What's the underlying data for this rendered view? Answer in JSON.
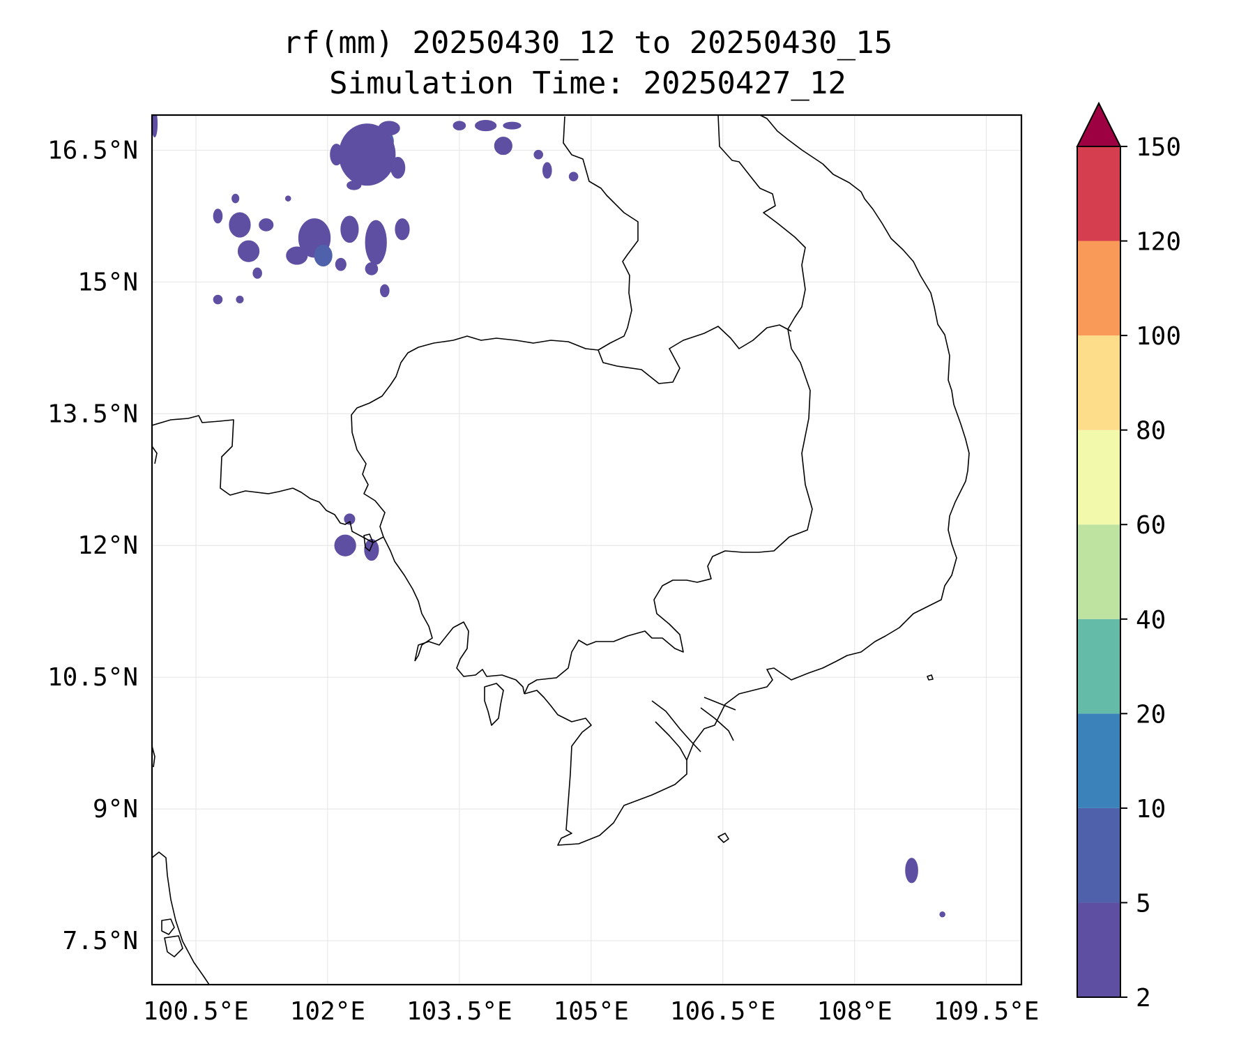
{
  "title": {
    "line1": "rf(mm) 20250430_12 to 20250430_15",
    "line2": "Simulation Time: 20250427_12"
  },
  "map": {
    "lon_range": [
      100.0,
      109.9
    ],
    "lat_range": [
      7.0,
      16.9
    ],
    "x_ticks": [
      {
        "value": 100.5,
        "label": "100.5°E"
      },
      {
        "value": 102.0,
        "label": "102°E"
      },
      {
        "value": 103.5,
        "label": "103.5°E"
      },
      {
        "value": 105.0,
        "label": "105°E"
      },
      {
        "value": 106.5,
        "label": "106.5°E"
      },
      {
        "value": 108.0,
        "label": "108°E"
      },
      {
        "value": 109.5,
        "label": "109.5°E"
      }
    ],
    "y_ticks": [
      {
        "value": 16.5,
        "label": "16.5°N"
      },
      {
        "value": 15.0,
        "label": "15°N"
      },
      {
        "value": 13.5,
        "label": "13.5°N"
      },
      {
        "value": 12.0,
        "label": "12°N"
      },
      {
        "value": 10.5,
        "label": "10.5°N"
      },
      {
        "value": 9.0,
        "label": "9°N"
      },
      {
        "value": 7.5,
        "label": "7.5°N"
      }
    ],
    "grid": true,
    "rain_patches": [
      {
        "lon": 102.5,
        "lat": 16.6,
        "rx": 0.25,
        "ry": 0.18,
        "bin": 2
      },
      {
        "lon": 102.45,
        "lat": 16.45,
        "rx": 0.32,
        "ry": 0.35,
        "bin": 1
      },
      {
        "lon": 102.7,
        "lat": 16.75,
        "rx": 0.12,
        "ry": 0.08,
        "bin": 1
      },
      {
        "lon": 102.1,
        "lat": 16.45,
        "rx": 0.07,
        "ry": 0.12,
        "bin": 1
      },
      {
        "lon": 102.8,
        "lat": 16.3,
        "rx": 0.08,
        "ry": 0.12,
        "bin": 1
      },
      {
        "lon": 102.3,
        "lat": 16.1,
        "rx": 0.08,
        "ry": 0.05,
        "bin": 1
      },
      {
        "lon": 103.8,
        "lat": 16.78,
        "rx": 0.12,
        "ry": 0.06,
        "bin": 1
      },
      {
        "lon": 103.5,
        "lat": 16.78,
        "rx": 0.07,
        "ry": 0.05,
        "bin": 1
      },
      {
        "lon": 104.1,
        "lat": 16.78,
        "rx": 0.1,
        "ry": 0.04,
        "bin": 1
      },
      {
        "lon": 104.0,
        "lat": 16.55,
        "rx": 0.1,
        "ry": 0.1,
        "bin": 1
      },
      {
        "lon": 104.5,
        "lat": 16.27,
        "rx": 0.05,
        "ry": 0.09,
        "bin": 1
      },
      {
        "lon": 104.8,
        "lat": 16.2,
        "rx": 0.05,
        "ry": 0.05,
        "bin": 1
      },
      {
        "lon": 104.4,
        "lat": 16.45,
        "rx": 0.05,
        "ry": 0.05,
        "bin": 1
      },
      {
        "lon": 101.0,
        "lat": 15.65,
        "rx": 0.12,
        "ry": 0.14,
        "bin": 1
      },
      {
        "lon": 100.75,
        "lat": 15.75,
        "rx": 0.05,
        "ry": 0.08,
        "bin": 1
      },
      {
        "lon": 101.1,
        "lat": 15.35,
        "rx": 0.12,
        "ry": 0.12,
        "bin": 1
      },
      {
        "lon": 101.3,
        "lat": 15.65,
        "rx": 0.08,
        "ry": 0.07,
        "bin": 1
      },
      {
        "lon": 101.85,
        "lat": 15.5,
        "rx": 0.18,
        "ry": 0.22,
        "bin": 1
      },
      {
        "lon": 101.65,
        "lat": 15.3,
        "rx": 0.12,
        "ry": 0.1,
        "bin": 1
      },
      {
        "lon": 101.95,
        "lat": 15.3,
        "rx": 0.1,
        "ry": 0.12,
        "bin": 2
      },
      {
        "lon": 102.25,
        "lat": 15.6,
        "rx": 0.1,
        "ry": 0.15,
        "bin": 1
      },
      {
        "lon": 102.55,
        "lat": 15.45,
        "rx": 0.12,
        "ry": 0.25,
        "bin": 1
      },
      {
        "lon": 102.85,
        "lat": 15.6,
        "rx": 0.08,
        "ry": 0.12,
        "bin": 1
      },
      {
        "lon": 102.5,
        "lat": 15.15,
        "rx": 0.07,
        "ry": 0.07,
        "bin": 1
      },
      {
        "lon": 102.15,
        "lat": 15.2,
        "rx": 0.06,
        "ry": 0.07,
        "bin": 1
      },
      {
        "lon": 102.65,
        "lat": 14.9,
        "rx": 0.05,
        "ry": 0.07,
        "bin": 1
      },
      {
        "lon": 101.2,
        "lat": 15.1,
        "rx": 0.05,
        "ry": 0.06,
        "bin": 1
      },
      {
        "lon": 100.75,
        "lat": 14.8,
        "rx": 0.05,
        "ry": 0.05,
        "bin": 1
      },
      {
        "lon": 101.0,
        "lat": 14.8,
        "rx": 0.04,
        "ry": 0.04,
        "bin": 1
      },
      {
        "lon": 101.55,
        "lat": 15.95,
        "rx": 0.03,
        "ry": 0.03,
        "bin": 1
      },
      {
        "lon": 100.95,
        "lat": 15.95,
        "rx": 0.04,
        "ry": 0.05,
        "bin": 1
      },
      {
        "lon": 100.03,
        "lat": 16.8,
        "rx": 0.03,
        "ry": 0.15,
        "bin": 1
      },
      {
        "lon": 102.2,
        "lat": 12.0,
        "rx": 0.12,
        "ry": 0.12,
        "bin": 1
      },
      {
        "lon": 102.5,
        "lat": 11.95,
        "rx": 0.08,
        "ry": 0.12,
        "bin": 1
      },
      {
        "lon": 102.25,
        "lat": 12.3,
        "rx": 0.06,
        "ry": 0.06,
        "bin": 1
      },
      {
        "lon": 108.65,
        "lat": 8.3,
        "rx": 0.07,
        "ry": 0.14,
        "bin": 1
      },
      {
        "lon": 109.0,
        "lat": 7.8,
        "rx": 0.03,
        "ry": 0.03,
        "bin": 1
      }
    ]
  },
  "colorbar": {
    "levels": [
      "2",
      "5",
      "10",
      "20",
      "40",
      "60",
      "80",
      "100",
      "120",
      "150"
    ],
    "colors": [
      "#5e4fa2",
      "#4f61aa",
      "#3a82b9",
      "#63bba8",
      "#bee3a0",
      "#f3f9ab",
      "#fddc8a",
      "#f99a58",
      "#d53e4f"
    ],
    "extend_color": "#9e0142"
  }
}
